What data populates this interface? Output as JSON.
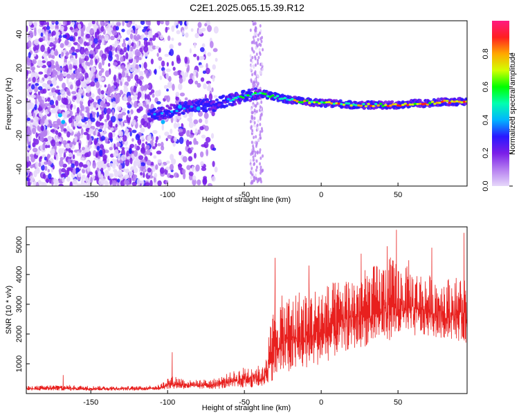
{
  "title": "C2E1.2025.065.15.39.R12",
  "chart_data": [
    {
      "type": "heatmap",
      "name": "spectrogram",
      "xlabel": "Height of straight line (km)",
      "ylabel": "Frequency (Hz)",
      "xlim": [
        -192,
        95
      ],
      "ylim": [
        -50,
        48
      ],
      "xticks": [
        -150,
        -100,
        -50,
        0,
        50
      ],
      "xtick_labels": [
        "-150",
        "-100",
        "-50",
        "0",
        "50"
      ],
      "yticks": [
        -40,
        -20,
        0,
        20,
        40
      ],
      "ytick_labels": [
        "-40",
        "-20",
        "0",
        "20",
        "40"
      ],
      "colorbar": {
        "label": "Normalized spectral amplitude",
        "range": [
          0,
          1
        ],
        "ticks": [
          0.0,
          0.2,
          0.4,
          0.6,
          0.8
        ],
        "tick_labels": [
          "0.0",
          "0.2",
          "0.4",
          "0.6",
          "0.8"
        ],
        "colors": [
          "#e6d8fa",
          "#b57ef0",
          "#7a1ee8",
          "#2a18ff",
          "#00b4ff",
          "#00ffb0",
          "#00ff00",
          "#d2ff00",
          "#ffa800",
          "#ff2020",
          "#ff1a80"
        ]
      },
      "ridge": {
        "x": [
          -110,
          -100,
          -90,
          -80,
          -70,
          -60,
          -50,
          -45,
          -40,
          -35,
          -30,
          -20,
          -10,
          0,
          10,
          20,
          30,
          40,
          50,
          60,
          70,
          80,
          90,
          95
        ],
        "y": [
          -8,
          -6,
          -4,
          -2,
          -2,
          1,
          3,
          4,
          5,
          4,
          3,
          1,
          0,
          -1,
          -1,
          -2,
          -2,
          -2,
          -2,
          -1,
          -1,
          0,
          0,
          0
        ]
      },
      "grid": false
    },
    {
      "type": "line",
      "name": "snr",
      "xlabel": "Height of straight line (km)",
      "ylabel": "SNR (10 * v/v)",
      "xlim": [
        -192,
        95
      ],
      "ylim": [
        0,
        5600
      ],
      "xticks": [
        -150,
        -100,
        -50,
        0,
        50
      ],
      "xtick_labels": [
        "-150",
        "-100",
        "-50",
        "0",
        "50"
      ],
      "yticks": [
        1000,
        2000,
        3000,
        4000,
        5000
      ],
      "ytick_labels": [
        "1000",
        "2000",
        "3000",
        "4000",
        "5000"
      ],
      "line_color": "#e8201e",
      "envelope": {
        "x": [
          -192,
          -170,
          -150,
          -120,
          -105,
          -100,
          -95,
          -85,
          -70,
          -55,
          -45,
          -38,
          -30,
          -25,
          -15,
          -5,
          5,
          15,
          30,
          45,
          55,
          70,
          85,
          95
        ],
        "low": [
          100,
          100,
          100,
          100,
          120,
          150,
          150,
          150,
          150,
          180,
          200,
          220,
          500,
          600,
          700,
          900,
          1100,
          1400,
          1600,
          1800,
          1900,
          1900,
          1800,
          1700
        ],
        "high": [
          250,
          300,
          260,
          250,
          300,
          550,
          600,
          450,
          500,
          800,
          1000,
          900,
          3200,
          3300,
          3500,
          3600,
          3700,
          3900,
          4200,
          4600,
          4300,
          4000,
          3900,
          4000
        ]
      },
      "peaks": {
        "x": [
          -168,
          -97,
          -30,
          -8,
          26,
          43,
          49,
          57,
          72,
          93
        ],
        "y": [
          620,
          1390,
          4560,
          4300,
          4700,
          4950,
          5500,
          4480,
          4900,
          5400
        ]
      },
      "grid": false
    }
  ]
}
